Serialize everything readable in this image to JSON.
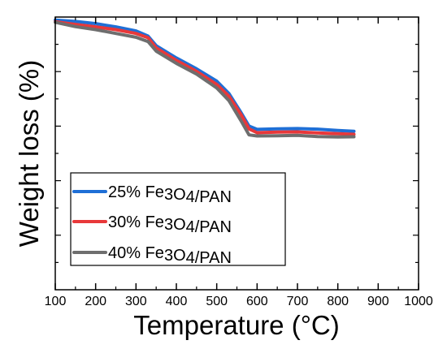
{
  "chart_data": {
    "type": "line",
    "title": "",
    "xlabel": "Temperature (°C)",
    "ylabel": "Weight loss (%)",
    "xlim": [
      100,
      1000
    ],
    "x_ticks": [
      100,
      200,
      300,
      400,
      500,
      600,
      700,
      800,
      900,
      1000
    ],
    "ylim": [
      0,
      100
    ],
    "y_tick_labels_shown": false,
    "grid": false,
    "legend_position": "lower-left",
    "series": [
      {
        "name": "25% Fe3O4/PAN",
        "color": "#1f6fd6",
        "x": [
          100,
          150,
          200,
          250,
          300,
          330,
          350,
          400,
          450,
          500,
          530,
          560,
          580,
          600,
          650,
          700,
          750,
          800,
          840
        ],
        "y": [
          98.9,
          98.4,
          97.6,
          96.4,
          94.9,
          93.0,
          89.5,
          85.0,
          81.0,
          76.5,
          72.0,
          65.0,
          60.0,
          58.8,
          59.0,
          59.1,
          58.9,
          58.4,
          58.1
        ]
      },
      {
        "name": "30% Fe3O4/PAN",
        "color": "#e8383a",
        "x": [
          100,
          150,
          200,
          250,
          300,
          330,
          350,
          400,
          450,
          500,
          530,
          560,
          580,
          600,
          650,
          700,
          750,
          800,
          840
        ],
        "y": [
          98.3,
          97.3,
          96.4,
          95.4,
          94.0,
          92.4,
          88.7,
          84.1,
          80.1,
          75.3,
          71.0,
          64.3,
          59.0,
          57.6,
          57.8,
          57.9,
          57.5,
          57.2,
          57.0
        ]
      },
      {
        "name": "40% Fe3O4/PAN",
        "color": "#6e6e6e",
        "x": [
          100,
          150,
          200,
          250,
          300,
          330,
          350,
          400,
          450,
          500,
          530,
          560,
          580,
          600,
          650,
          700,
          750,
          800,
          840
        ],
        "y": [
          98.1,
          96.5,
          95.4,
          94.0,
          92.6,
          91.0,
          87.5,
          83.0,
          79.1,
          74.0,
          69.4,
          62.0,
          56.8,
          56.4,
          56.5,
          56.6,
          56.2,
          56.0,
          56.1
        ]
      }
    ]
  }
}
